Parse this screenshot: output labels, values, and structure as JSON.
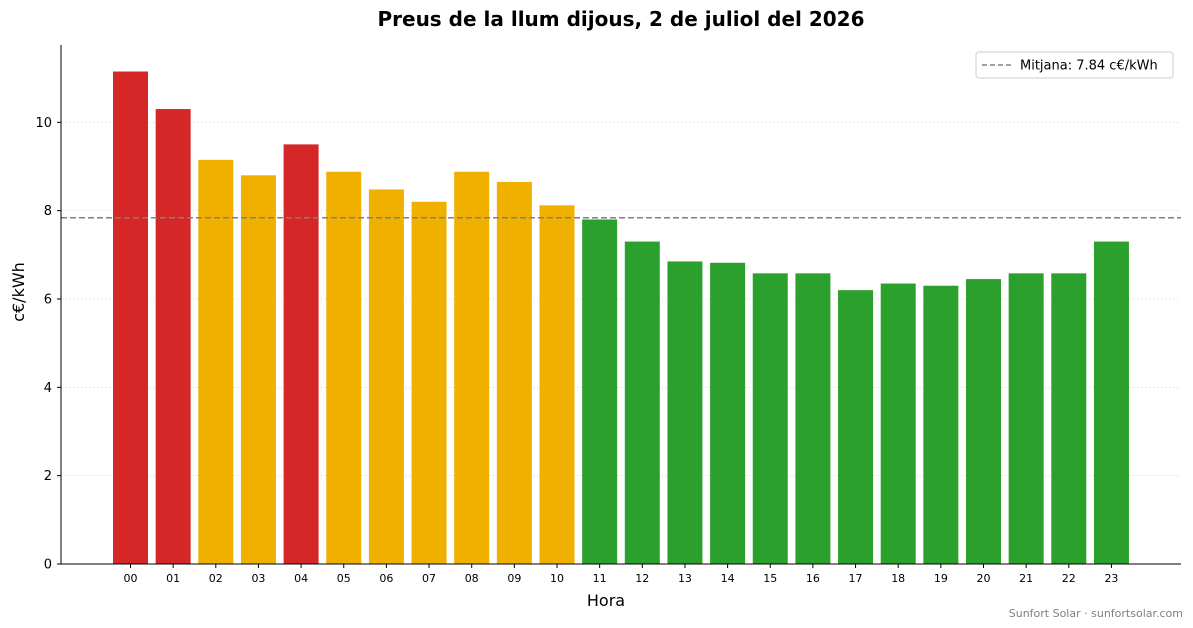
{
  "chart_data": {
    "type": "bar",
    "title": "Preus de la llum dijous, 2 de juliol del 2026",
    "xlabel": "Hora",
    "ylabel": "c€/kWh",
    "ylim": [
      0,
      11.75
    ],
    "yticks": [
      0,
      2,
      4,
      6,
      8,
      10
    ],
    "grid": "horizontal dotted",
    "legend_position": "top-right",
    "categories": [
      "00",
      "01",
      "02",
      "03",
      "04",
      "05",
      "06",
      "07",
      "08",
      "09",
      "10",
      "11",
      "12",
      "13",
      "14",
      "15",
      "16",
      "17",
      "18",
      "19",
      "20",
      "21",
      "22",
      "23"
    ],
    "values": [
      11.15,
      10.3,
      9.15,
      8.8,
      9.5,
      8.88,
      8.48,
      8.2,
      8.88,
      8.65,
      8.12,
      7.8,
      7.3,
      6.85,
      6.82,
      6.58,
      6.58,
      6.2,
      6.35,
      6.3,
      6.45,
      6.58,
      6.58,
      7.3
    ],
    "bar_colors": [
      "#d62728",
      "#d62728",
      "#f0b000",
      "#f0b000",
      "#d62728",
      "#f0b000",
      "#f0b000",
      "#f0b000",
      "#f0b000",
      "#f0b000",
      "#f0b000",
      "#2ca02c",
      "#2ca02c",
      "#2ca02c",
      "#2ca02c",
      "#2ca02c",
      "#2ca02c",
      "#2ca02c",
      "#2ca02c",
      "#2ca02c",
      "#2ca02c",
      "#2ca02c",
      "#2ca02c",
      "#2ca02c"
    ],
    "mean_line": {
      "value": 7.84,
      "label": "Mitjana: 7.84 c€/kWh",
      "color": "#808080"
    }
  },
  "footer": "Sunfort Solar · sunfortsolar.com"
}
